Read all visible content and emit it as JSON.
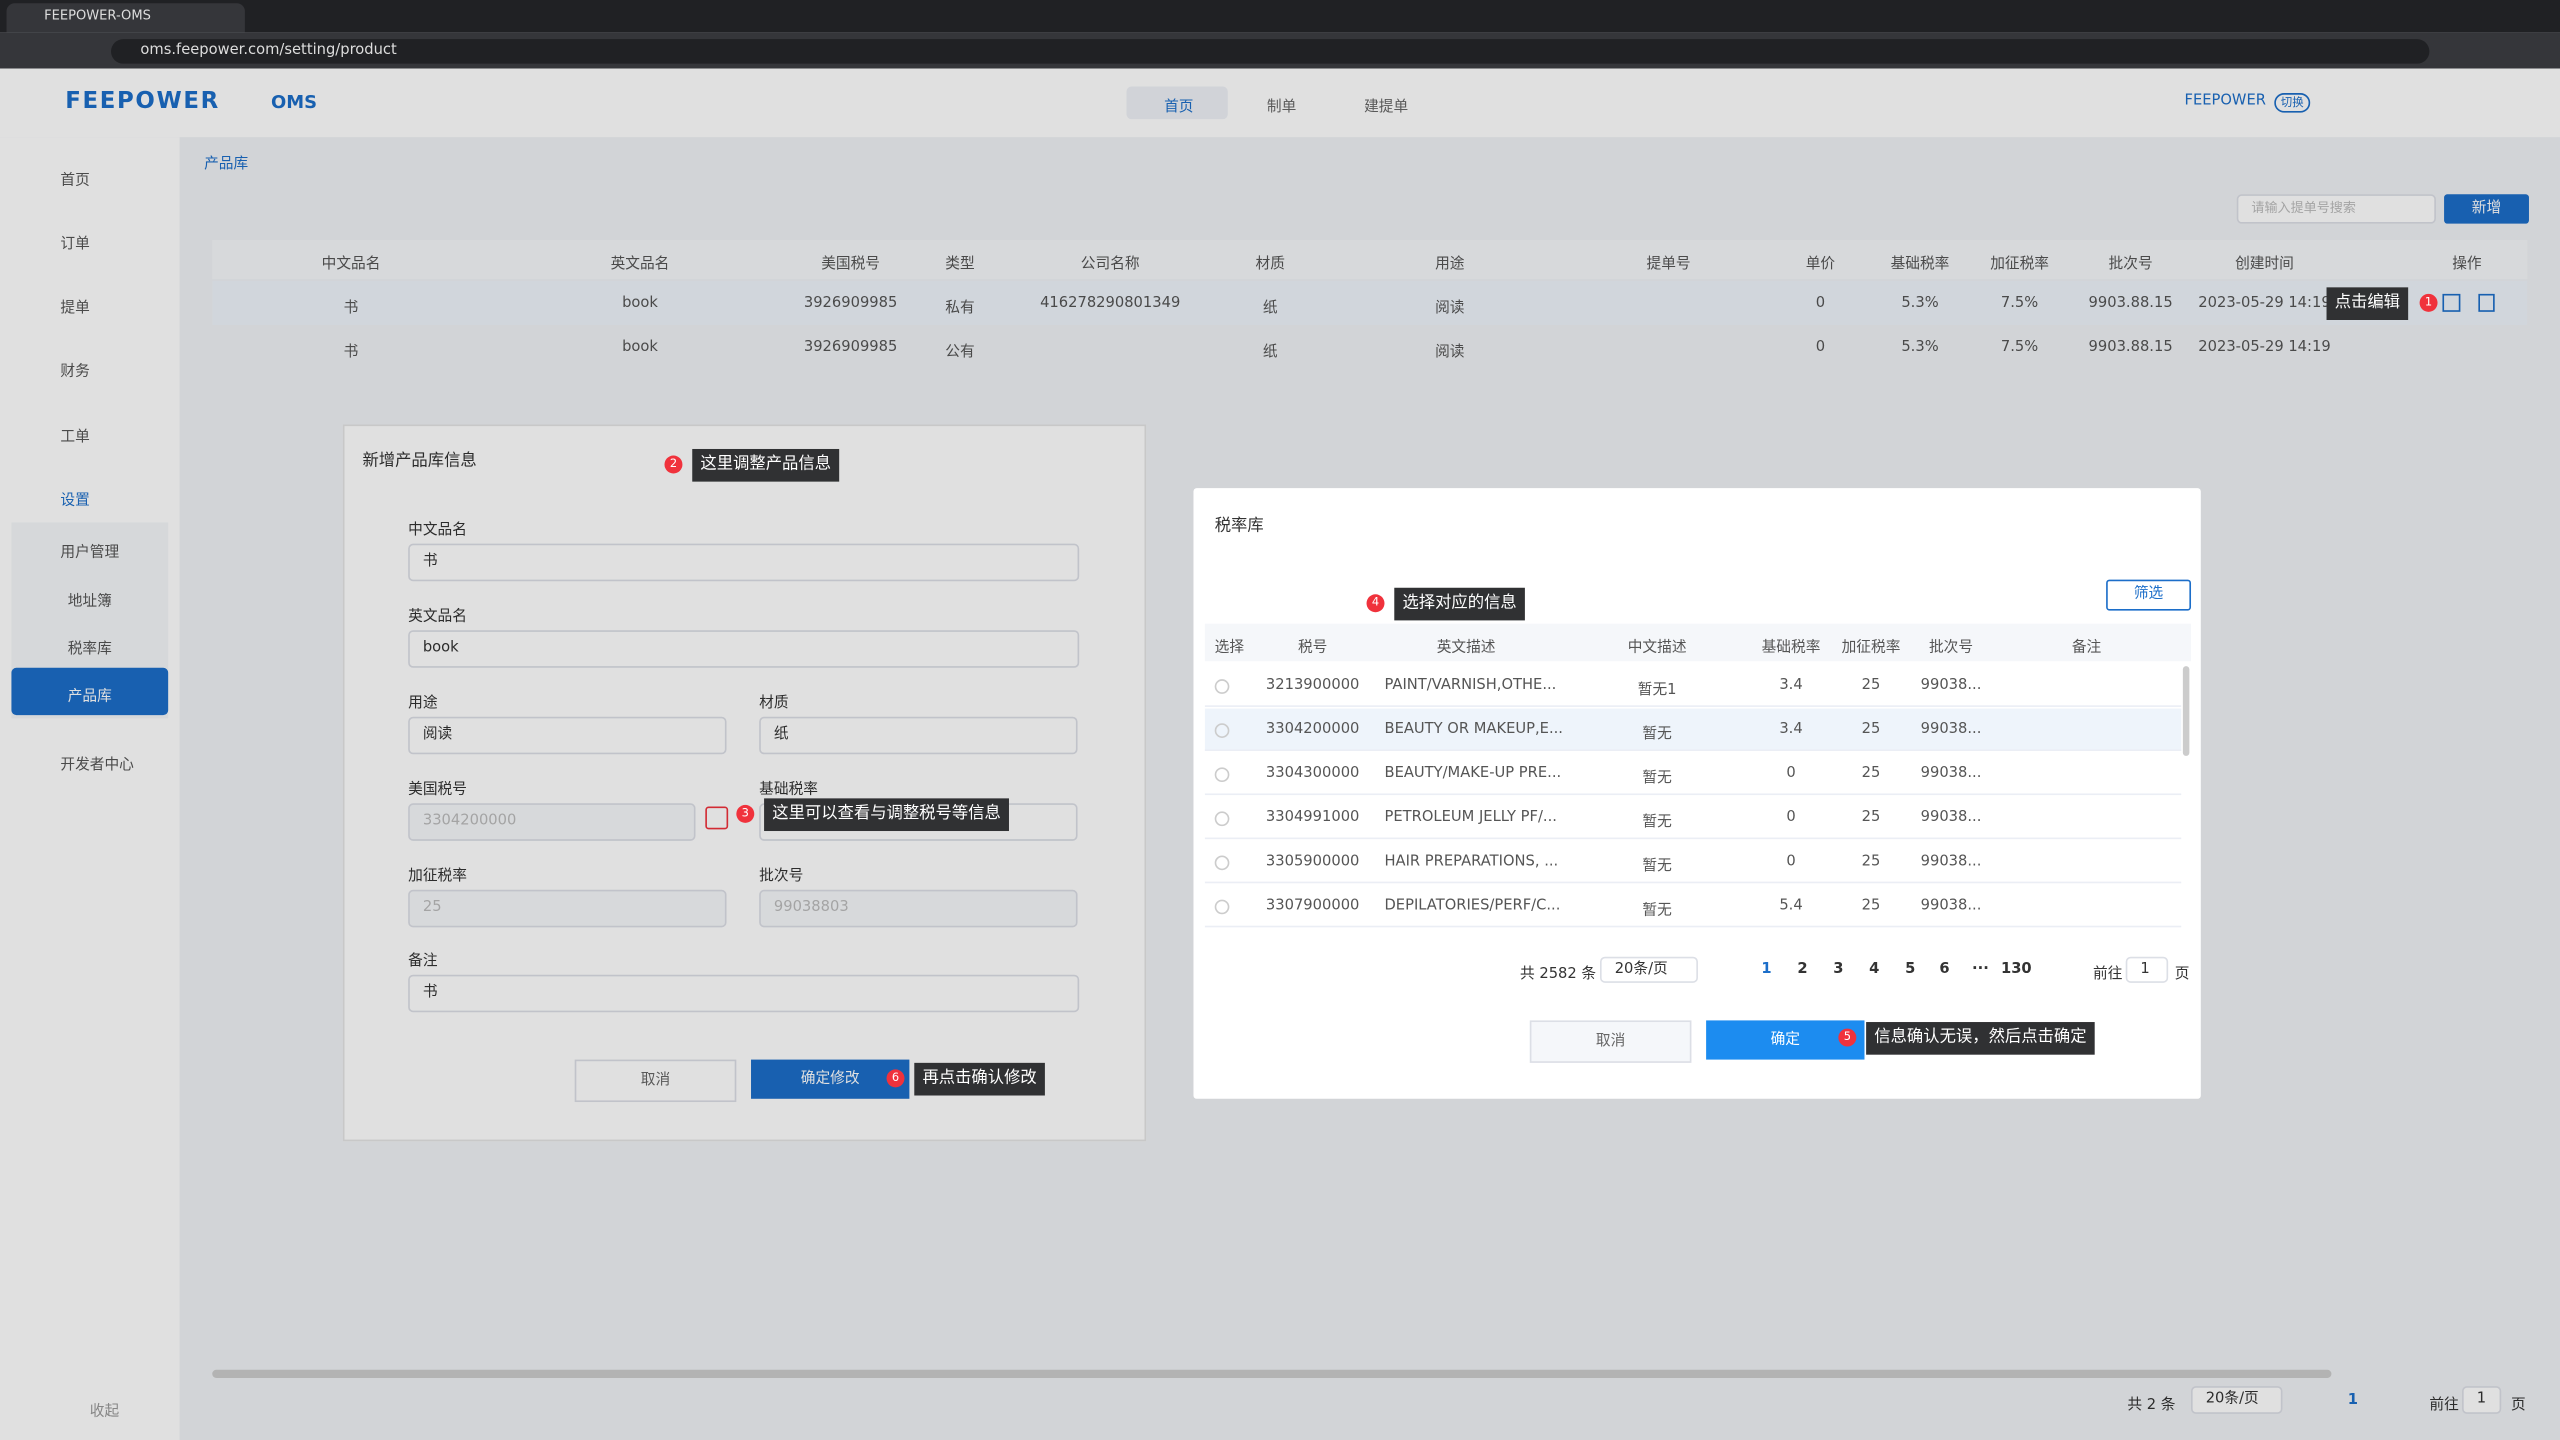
{
  "browser": {
    "tab_title": "FEEPOWER-OMS",
    "url": "oms.feepower.com/setting/product"
  },
  "header": {
    "logo": "FEEPOWER",
    "app": "OMS",
    "nav": [
      "首页",
      "制单",
      "建提单"
    ],
    "user": "FEEPOWER",
    "switch": "切换"
  },
  "sidebar": {
    "items": [
      "首页",
      "订单",
      "提单",
      "财务",
      "工单",
      "设置"
    ],
    "sub_items": [
      "用户管理",
      "地址簿",
      "税率库",
      "产品库"
    ],
    "developer": "开发者中心",
    "collapse": "收起"
  },
  "breadcrumb": "产品库",
  "toolbar": {
    "search_placeholder": "请输入提单号搜索",
    "new_button": "新增"
  },
  "table": {
    "columns": [
      "中文品名",
      "英文品名",
      "美国税号",
      "类型",
      "公司名称",
      "材质",
      "用途",
      "提单号",
      "单价",
      "基础税率",
      "加征税率",
      "批次号",
      "创建时间",
      "操作"
    ],
    "rows": [
      [
        "书",
        "book",
        "3926909985",
        "私有",
        "416278290801349",
        "纸",
        "阅读",
        null,
        "0",
        "5.3%",
        "7.5%",
        "9903.88.15",
        "2023-05-29 14:19"
      ],
      [
        "书",
        "book",
        "3926909985",
        "公有",
        null,
        "纸",
        "阅读",
        null,
        "0",
        "5.3%",
        "7.5%",
        "9903.88.15",
        "2023-05-29 14:19"
      ]
    ]
  },
  "pagination": {
    "total": "共 2 条",
    "page_size": "20条/页",
    "current": "1",
    "goto": "前往",
    "goto_value": "1",
    "page_unit": "页"
  },
  "product_dialog": {
    "title": "新增产品库信息",
    "fields": [
      {
        "label": "中文品名",
        "value": "书"
      },
      {
        "label": "英文品名",
        "value": "book"
      },
      {
        "label": "用途",
        "value": "阅读"
      },
      {
        "label": "材质",
        "value": "纸"
      },
      {
        "label": "美国税号",
        "value": "3304200000"
      },
      {
        "label": "基础税率"
      },
      {
        "label": "加征税率",
        "value": "25"
      },
      {
        "label": "批次号",
        "value": "99038803"
      },
      {
        "label": "备注",
        "value": "书"
      }
    ],
    "cancel": "取消",
    "confirm": "确定修改"
  },
  "tax_dialog": {
    "title": "税率库",
    "filter": "筛选",
    "columns": [
      "选择",
      "税号",
      "英文描述",
      "中文描述",
      "基础税率",
      "加征税率",
      "批次号",
      "备注"
    ],
    "rows": [
      [
        "3213900000",
        "PAINT/VARNISH,OTHE...",
        "暂无1",
        "3.4",
        "25",
        "99038..."
      ],
      [
        "3304200000",
        "BEAUTY OR MAKEUP,E...",
        "暂无",
        "3.4",
        "25",
        "99038..."
      ],
      [
        "3304300000",
        "BEAUTY/MAKE-UP PRE...",
        "暂无",
        "0",
        "25",
        "99038..."
      ],
      [
        "3304991000",
        "PETROLEUM JELLY PF/...",
        "暂无",
        "0",
        "25",
        "99038..."
      ],
      [
        "3305900000",
        "HAIR PREPARATIONS, ...",
        "暂无",
        "0",
        "25",
        "99038..."
      ],
      [
        "3307900000",
        "DEPILATORIES/PERF/C...",
        "暂无",
        "5.4",
        "25",
        "99038..."
      ]
    ],
    "pagination": {
      "total": "共 2582 条",
      "page_size": "20条/页",
      "pages": [
        "1",
        "2",
        "3",
        "4",
        "5",
        "6",
        "···",
        "130"
      ],
      "goto": "前往",
      "goto_value": "1",
      "page_unit": "页"
    },
    "cancel": "取消",
    "confirm": "确定"
  },
  "annotations": [
    {
      "num": "1",
      "text": "点击编辑"
    },
    {
      "num": "2",
      "text": "这里调整产品信息"
    },
    {
      "num": "3",
      "text": "这里可以查看与调整税号等信息"
    },
    {
      "num": "4",
      "text": "选择对应的信息"
    },
    {
      "num": "5",
      "text": "信息确认无误，然后点击确定"
    },
    {
      "num": "6",
      "text": "再点击确认修改"
    }
  ]
}
